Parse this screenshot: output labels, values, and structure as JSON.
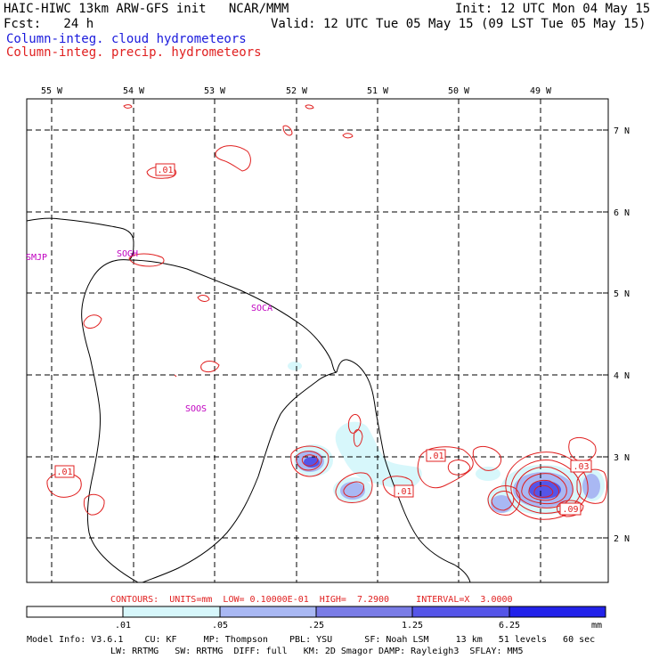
{
  "header": {
    "title": "HAIC-HIWC 13km ARW-GFS init   NCAR/MMM",
    "init": "Init: 12 UTC Mon 04 May 15",
    "fcst": "Fcst:   24 h",
    "valid": "Valid: 12 UTC Tue 05 May 15 (09 LST Tue 05 May 15)",
    "legend_cloud": "Column-integ. cloud hydrometeors",
    "legend_precip": "Column-integ. precip. hydrometeors"
  },
  "map": {
    "lon_labels": [
      "55 W",
      "54 W",
      "53 W",
      "52 W",
      "51 W",
      "50 W",
      "49 W"
    ],
    "lat_labels": [
      "7 N",
      "6 N",
      "5 N",
      "4 N",
      "3 N",
      "2 N"
    ],
    "stations": [
      "SMJP",
      "SOGH",
      "SOCA",
      "SOOS"
    ],
    "contour_labels": [
      ".01",
      ".01",
      ".01",
      ".01",
      ".03",
      ".09"
    ]
  },
  "contour_info": "CONTOURS:  UNITS=mm  LOW= 0.10000E-01  HIGH=  7.2900     INTERVAL=X  3.0000",
  "colorbar": {
    "labels": [
      ".01",
      ".05",
      ".25",
      "1.25",
      "6.25",
      "mm"
    ],
    "colors": [
      "#ffffff",
      "#d7f7fb",
      "#a9b8f3",
      "#7a7ce6",
      "#5555e8",
      "#2222ea"
    ]
  },
  "model_info": {
    "line1": "Model Info: V3.6.1    CU: KF     MP: Thompson    PBL: YSU      SF: Noah LSM     13 km   51 levels   60 sec",
    "line2": "LW: RRTMG   SW: RRTMG  DIFF: full   KM: 2D Smagor DAMP: Rayleigh3  SFLAY: MM5"
  }
}
